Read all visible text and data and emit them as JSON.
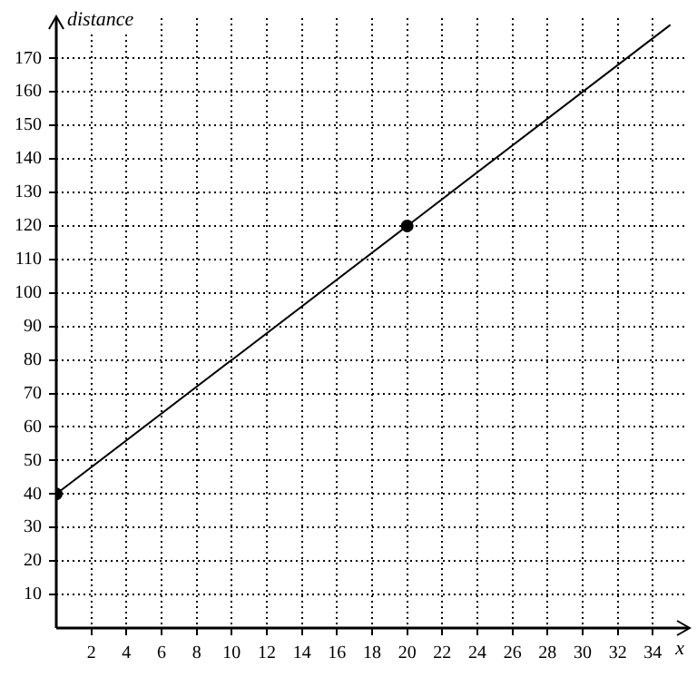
{
  "chart_data": {
    "type": "line",
    "xlabel": "x",
    "ylabel": "distance",
    "series": [
      {
        "type": "line",
        "color": "#000000",
        "x": [
          0,
          20,
          35
        ],
        "values": [
          40,
          120,
          180
        ],
        "marker": "none"
      },
      {
        "type": "scatter",
        "color": "#000000",
        "x": [
          0,
          20
        ],
        "values": [
          40,
          120
        ],
        "marker": "circle"
      }
    ],
    "xlim": [
      0,
      36
    ],
    "xticks": [
      2,
      4,
      6,
      8,
      10,
      12,
      14,
      16,
      18,
      20,
      22,
      24,
      26,
      28,
      30,
      32,
      34
    ],
    "ylim": [
      0,
      182
    ],
    "yticks": [
      10,
      20,
      30,
      40,
      50,
      60,
      70,
      80,
      90,
      100,
      110,
      120,
      130,
      140,
      150,
      160,
      170
    ],
    "grid": true,
    "legend": false
  }
}
